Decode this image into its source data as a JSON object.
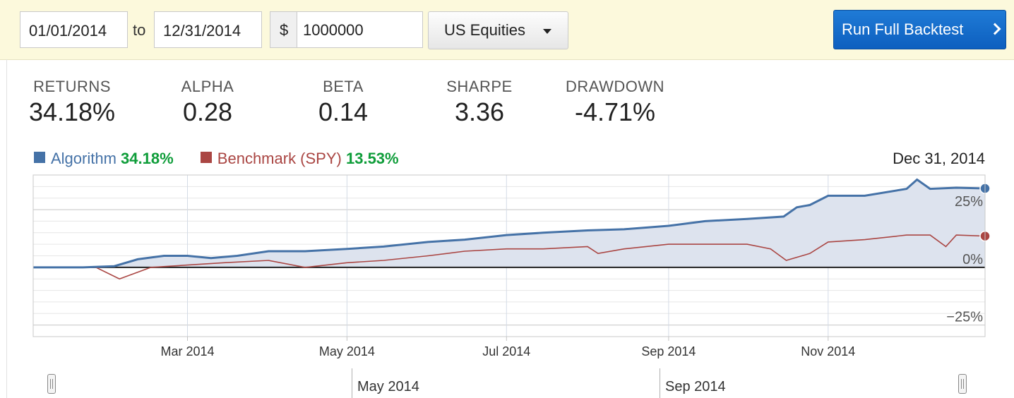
{
  "toolbar": {
    "start_date": "01/01/2014",
    "to_label": "to",
    "end_date": "12/31/2014",
    "currency_symbol": "$",
    "capital": "1000000",
    "universe": "US Equities",
    "run_button": "Run Full Backtest"
  },
  "metrics": [
    {
      "label": "RETURNS",
      "value": "34.18%"
    },
    {
      "label": "ALPHA",
      "value": "0.28"
    },
    {
      "label": "BETA",
      "value": "0.14"
    },
    {
      "label": "SHARPE",
      "value": "3.36"
    },
    {
      "label": "DRAWDOWN",
      "value": "-4.71%"
    }
  ],
  "legend": {
    "date": "Dec 31, 2014"
  },
  "colors": {
    "algorithm": "#4572a7",
    "benchmark": "#aa4643",
    "positive": "#0f9d3a",
    "area_fill": "#dde3ee"
  },
  "chart_data": {
    "type": "line",
    "x_range": [
      "2014-01-01",
      "2014-12-31"
    ],
    "ylim": [
      -30,
      40
    ],
    "y_ticks": [
      25,
      0,
      -25
    ],
    "y_tick_labels": [
      "25%",
      "0%",
      "−25%"
    ],
    "x_ticks": [
      "2014-03-01",
      "2014-05-01",
      "2014-07-01",
      "2014-09-01",
      "2014-11-01"
    ],
    "x_tick_labels": [
      "Mar 2014",
      "May 2014",
      "Jul 2014",
      "Sep 2014",
      "Nov 2014"
    ],
    "grid": true,
    "legend_position": "top-left",
    "series": [
      {
        "name": "Algorithm",
        "final_value": "34.18%",
        "x": [
          "2014-01-01",
          "2014-01-20",
          "2014-02-01",
          "2014-02-10",
          "2014-02-20",
          "2014-03-01",
          "2014-03-10",
          "2014-03-20",
          "2014-04-01",
          "2014-04-15",
          "2014-05-01",
          "2014-05-15",
          "2014-06-01",
          "2014-06-15",
          "2014-07-01",
          "2014-07-15",
          "2014-08-01",
          "2014-08-15",
          "2014-09-01",
          "2014-09-15",
          "2014-10-01",
          "2014-10-15",
          "2014-10-20",
          "2014-10-25",
          "2014-11-01",
          "2014-11-15",
          "2014-12-01",
          "2014-12-05",
          "2014-12-10",
          "2014-12-20",
          "2014-12-31"
        ],
        "values": [
          0,
          0,
          0.5,
          3.5,
          5,
          5,
          4,
          5,
          7,
          7,
          8,
          9,
          11,
          12,
          14,
          15,
          16,
          16.5,
          18,
          20,
          21,
          22,
          26,
          27,
          31,
          31,
          34,
          38,
          34,
          34.5,
          34.18
        ]
      },
      {
        "name": "Benchmark (SPY)",
        "final_value": "13.53%",
        "x": [
          "2014-01-01",
          "2014-01-25",
          "2014-02-03",
          "2014-02-15",
          "2014-03-01",
          "2014-03-15",
          "2014-04-01",
          "2014-04-15",
          "2014-05-01",
          "2014-05-15",
          "2014-06-01",
          "2014-06-15",
          "2014-07-01",
          "2014-07-15",
          "2014-08-01",
          "2014-08-05",
          "2014-08-15",
          "2014-09-01",
          "2014-09-15",
          "2014-10-01",
          "2014-10-10",
          "2014-10-16",
          "2014-10-25",
          "2014-11-01",
          "2014-11-15",
          "2014-12-01",
          "2014-12-10",
          "2014-12-16",
          "2014-12-20",
          "2014-12-31"
        ],
        "values": [
          0,
          0,
          -5,
          0,
          1,
          2,
          3,
          0,
          2,
          3,
          5,
          7,
          8,
          8,
          9,
          6,
          8,
          10,
          10,
          10,
          8,
          3,
          6,
          11,
          12,
          14,
          14,
          9,
          14,
          13.53
        ]
      }
    ]
  }
}
